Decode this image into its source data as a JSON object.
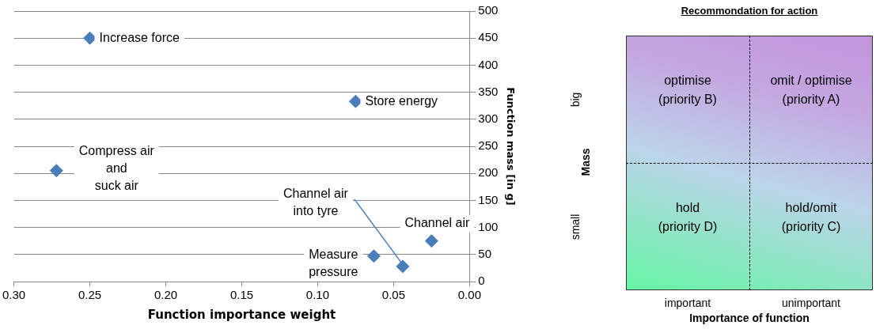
{
  "chart_data": [
    {
      "type": "scatter",
      "xlabel": "Function importance weight",
      "ylabel": "Function mass [in g]",
      "series": [
        {
          "color": "#4a7ebb",
          "x": [
            0.25,
            0.075,
            0.272,
            0.063,
            0.044,
            0.025
          ],
          "values": [
            450,
            333,
            205,
            47,
            28,
            75
          ]
        }
      ],
      "xlim": [
        0.3,
        0.0
      ],
      "xticks": [
        {
          "value": 0.3,
          "label": "0.30"
        },
        {
          "value": 0.25,
          "label": "0.25"
        },
        {
          "value": 0.2,
          "label": "0.20"
        },
        {
          "value": 0.15,
          "label": "0.15"
        },
        {
          "value": 0.1,
          "label": "0.10"
        },
        {
          "value": 0.05,
          "label": "0.05"
        },
        {
          "value": 0,
          "label": "0.00"
        }
      ],
      "ylim": [
        0,
        500
      ],
      "yticks": [
        0,
        50,
        100,
        150,
        200,
        250,
        300,
        350,
        400,
        450,
        500
      ],
      "grid": "y",
      "legend": false,
      "marker": "diamond",
      "annotations": [
        {
          "text": "Increase force",
          "x": 0.25,
          "y": 450
        },
        {
          "text": "Store energy",
          "x": 0.075,
          "y": 333
        },
        {
          "text": "Compress air\nand\nsuck air",
          "x": 0.272,
          "y": 205
        },
        {
          "text": "Measure\npressure",
          "x": 0.063,
          "y": 47
        },
        {
          "text": "Channel air\ninto tyre",
          "x": 0.044,
          "y": 28
        },
        {
          "text": "Channel air",
          "x": 0.025,
          "y": 75
        }
      ]
    },
    {
      "type": "other",
      "title": "Recommondation for action",
      "xlabel": "Importance of function",
      "ylabel": "Mass",
      "categories": [
        "important",
        "unimportant"
      ],
      "y_categories": [
        "big",
        "small"
      ],
      "annotations": [
        "optimise\n(priority B)",
        "omit / optimise\n(priority A)",
        "hold\n(priority D)",
        "hold/omit\n(priority C)"
      ]
    }
  ]
}
